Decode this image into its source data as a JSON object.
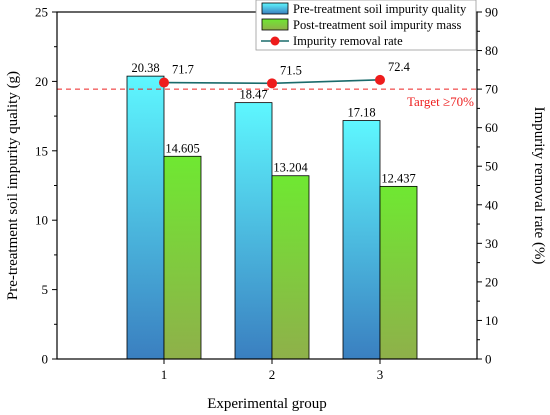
{
  "chart_data": {
    "type": "bar",
    "xlabel": "Experimental group",
    "ylabel_left": "Pre-treatment soil impurity quality (g)",
    "ylabel_right": "Impurity removal rate (%)",
    "categories": [
      "1",
      "2",
      "3"
    ],
    "ylim_left": [
      0,
      25
    ],
    "yticks_left": [
      "0",
      "5",
      "10",
      "15",
      "20",
      "25"
    ],
    "ylim_right": [
      0,
      90
    ],
    "yticks_right": [
      "0",
      "10",
      "20",
      "30",
      "40",
      "50",
      "60",
      "70",
      "80",
      "90"
    ],
    "grid": false,
    "legend_position": "top-right",
    "series": [
      {
        "name": "Pre-treatment soil impurity quality",
        "kind": "bar",
        "axis": "left",
        "values": [
          20.38,
          18.47,
          17.18
        ],
        "labels": [
          "20.38",
          "18.47",
          "17.18"
        ],
        "color_top": "#5ef7ff",
        "color_bottom": "#3a7fc0"
      },
      {
        "name": "Post-treatment soil impurity mass",
        "kind": "bar",
        "axis": "left",
        "values": [
          14.605,
          13.204,
          12.437
        ],
        "labels": [
          "14.605",
          "13.204",
          "12.437"
        ],
        "color_top": "#6fe832",
        "color_bottom": "#8fb04a"
      },
      {
        "name": "Impurity removal rate",
        "kind": "line",
        "axis": "right",
        "values": [
          71.7,
          71.5,
          72.4
        ],
        "labels": [
          "71.7",
          "71.5",
          "72.4"
        ],
        "color_line": "#1a6b6b",
        "color_marker": "#ee1c1c"
      }
    ],
    "target": {
      "label": "Target ≥70%",
      "value": 70,
      "axis": "right",
      "color": "#ee2222"
    }
  }
}
